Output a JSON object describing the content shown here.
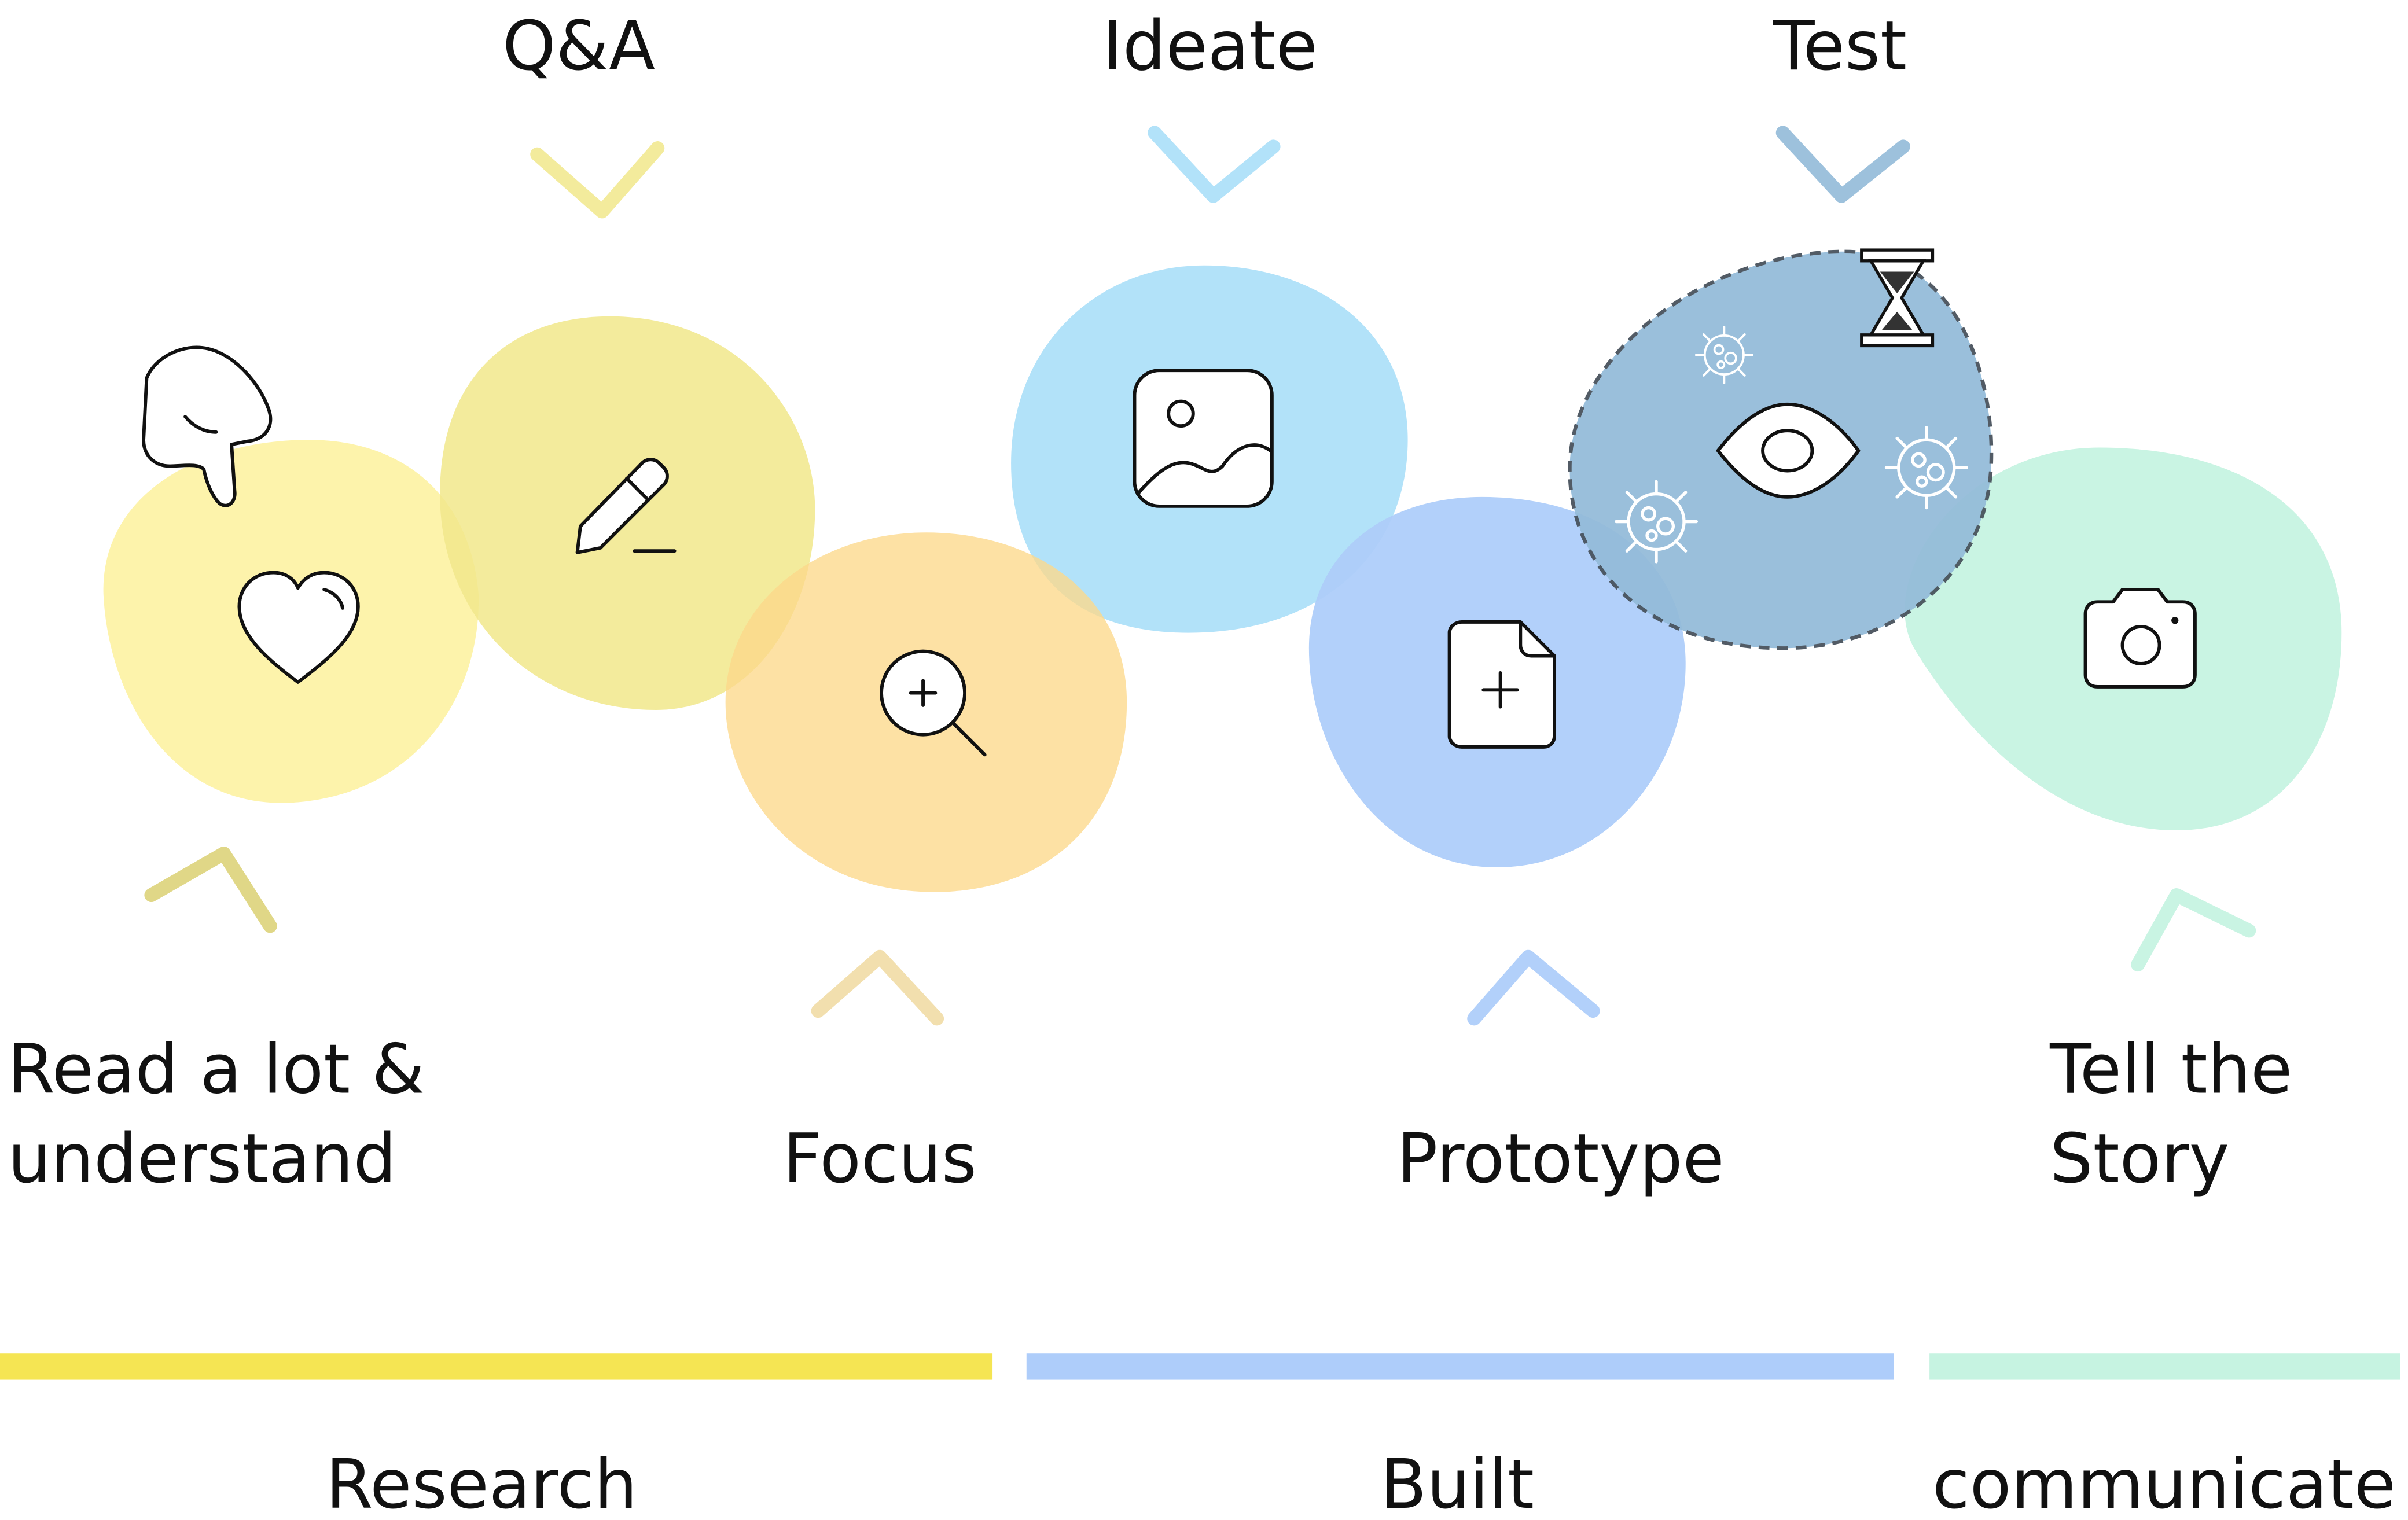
{
  "colors": {
    "yellow": "#f5e553",
    "light_yellow": "#fdf2a4",
    "khaki": "#f1e88b",
    "orange": "#fcd98a",
    "sky": "#aee0f9",
    "blue": "#aecdfa",
    "steel": "#92bad8",
    "mint": "#c6f3e1",
    "ink": "#111111"
  },
  "stages": [
    {
      "id": "read",
      "label_lines": [
        "Read a lot &",
        "understand"
      ],
      "icon": "heart-icon",
      "blob_color": "light_yellow"
    },
    {
      "id": "qa",
      "label_lines": [
        "Q&A"
      ],
      "icon": "pencil-icon",
      "blob_color": "khaki"
    },
    {
      "id": "focus",
      "label_lines": [
        "Focus"
      ],
      "icon": "zoom-in-icon",
      "blob_color": "orange"
    },
    {
      "id": "ideate",
      "label_lines": [
        "Ideate"
      ],
      "icon": "image-icon",
      "blob_color": "sky"
    },
    {
      "id": "prototype",
      "label_lines": [
        "Prototype"
      ],
      "icon": "new-file-icon",
      "blob_color": "blue"
    },
    {
      "id": "test",
      "label_lines": [
        "Test"
      ],
      "icon": "eye-icon",
      "blob_color": "steel"
    },
    {
      "id": "story",
      "label_lines": [
        "Tell the",
        "Story"
      ],
      "icon": "camera-icon",
      "blob_color": "mint"
    }
  ],
  "extra_icons": [
    "pointing-hand-icon",
    "hourglass-icon",
    "virus-icon"
  ],
  "phases": [
    {
      "label": "Research",
      "color": "yellow"
    },
    {
      "label": "Built",
      "color": "blue"
    },
    {
      "label": "communicate",
      "color": "mint"
    }
  ]
}
